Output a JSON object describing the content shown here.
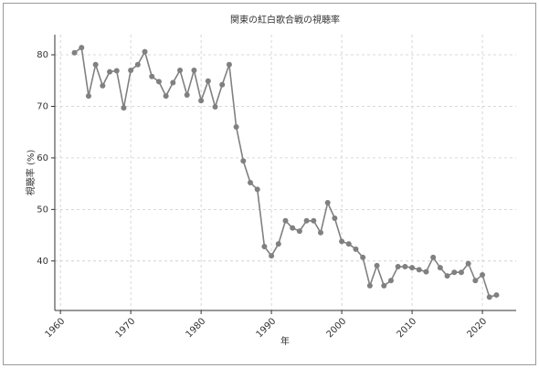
{
  "chart_data": {
    "type": "line",
    "title": "関東の紅白歌合戦の視聴率",
    "x_label": "年",
    "y_label": "視聴率 (%)",
    "x": [
      1962,
      1963,
      1964,
      1965,
      1966,
      1967,
      1968,
      1969,
      1970,
      1971,
      1972,
      1973,
      1974,
      1975,
      1976,
      1977,
      1978,
      1979,
      1980,
      1981,
      1982,
      1983,
      1984,
      1985,
      1986,
      1987,
      1988,
      1989,
      1990,
      1991,
      1992,
      1993,
      1994,
      1995,
      1996,
      1997,
      1998,
      1999,
      2000,
      2001,
      2002,
      2003,
      2004,
      2005,
      2006,
      2007,
      2008,
      2009,
      2010,
      2011,
      2012,
      2013,
      2014,
      2015,
      2016,
      2017,
      2018,
      2019,
      2020,
      2021,
      2022
    ],
    "series": [
      {
        "name": "視聴率",
        "color": "#808080",
        "values": [
          80.4,
          81.4,
          72.0,
          78.1,
          74.0,
          76.7,
          76.9,
          69.7,
          77.0,
          78.1,
          80.6,
          75.8,
          74.8,
          72.0,
          74.6,
          77.0,
          72.2,
          77.0,
          71.1,
          74.9,
          69.9,
          74.2,
          78.1,
          66.0,
          59.4,
          55.2,
          53.9,
          42.8,
          41.0,
          43.3,
          47.8,
          46.4,
          45.8,
          47.8,
          47.8,
          45.5,
          51.3,
          48.3,
          43.8,
          43.3,
          42.3,
          40.7,
          35.2,
          39.1,
          35.2,
          36.2,
          38.9,
          38.9,
          38.7,
          38.3,
          37.9,
          40.7,
          38.7,
          37.1,
          37.8,
          37.8,
          39.5,
          36.2,
          37.3,
          33.0,
          33.4
        ]
      }
    ],
    "xlim": [
      1959.2,
      2024.8
    ],
    "ylim": [
      30.4,
      83.9
    ],
    "xticks": [
      1960,
      1970,
      1980,
      1990,
      2000,
      2010,
      2020
    ],
    "yticks": [
      40,
      50,
      60,
      70,
      80
    ],
    "grid": true
  }
}
